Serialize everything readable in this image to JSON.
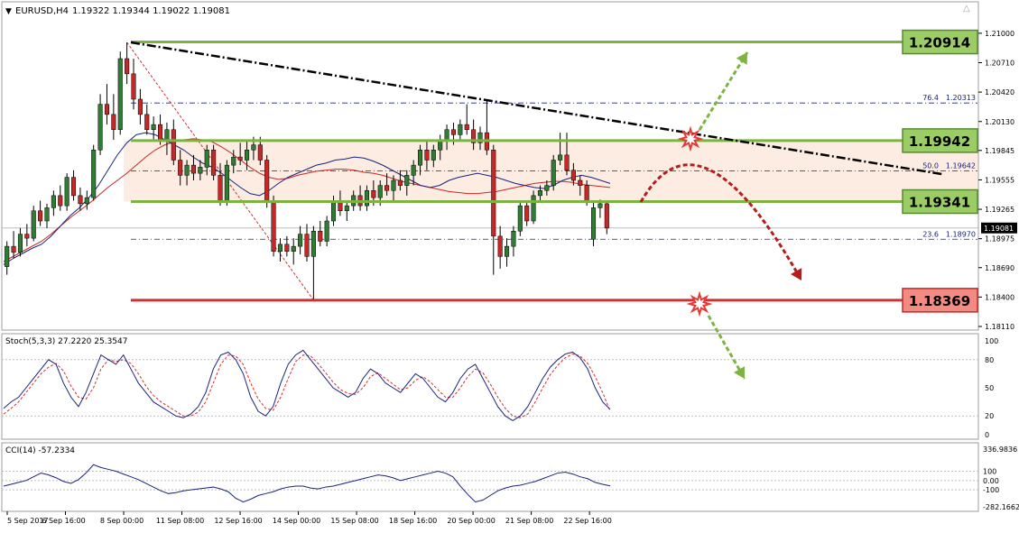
{
  "header": {
    "symbol": "EURUSD,H4",
    "ohlc": "1.19322 1.19344 1.19022 1.19081"
  },
  "colors": {
    "bull": "#2e7d32",
    "bear": "#c62828",
    "level_green": "#7cb342",
    "level_red": "#d32f2f",
    "zone_fill": "#fde9dd",
    "trendline": "#000000",
    "fib": "#1a237e",
    "ma_blue": "#1a237e",
    "ma_red": "#c62828",
    "stoch_main": "#1a237e",
    "stoch_signal": "#d32f2f",
    "cci": "#1a237e"
  },
  "chart_data": [
    {
      "type": "candlestick",
      "title": "EURUSD,H4",
      "ylim": [
        1.1811,
        1.2115
      ],
      "y_ticks": [
        "1.21000",
        "1.20710",
        "1.20420",
        "1.20130",
        "1.19845",
        "1.19555",
        "1.19265",
        "1.18975",
        "1.18690",
        "1.18400",
        "1.18110"
      ],
      "current_price": "1.19081",
      "x_labels": [
        "5 Sep 2017",
        "6 Sep 16:00",
        "8 Sep 00:00",
        "11 Sep 08:00",
        "12 Sep 16:00",
        "14 Sep 00:00",
        "15 Sep 08:00",
        "18 Sep 16:00",
        "20 Sep 00:00",
        "21 Sep 08:00",
        "22 Sep 16:00"
      ],
      "levels": [
        {
          "label": "1.20914",
          "value": 1.20914,
          "color": "green"
        },
        {
          "label": "1.19942",
          "value": 1.19942,
          "color": "green"
        },
        {
          "label": "1.19341",
          "value": 1.19341,
          "color": "green"
        },
        {
          "label": "1.18369",
          "value": 1.18369,
          "color": "red"
        }
      ],
      "fibonacci": [
        {
          "ratio": "76.4",
          "price": "1.20313"
        },
        {
          "ratio": "50.0",
          "price": "1.19642"
        },
        {
          "ratio": "23.6",
          "price": "1.18970"
        }
      ],
      "candles": [
        [
          1.187,
          1.1895,
          1.1862,
          1.189
        ],
        [
          1.189,
          1.1905,
          1.1878,
          1.1884
        ],
        [
          1.1884,
          1.1908,
          1.188,
          1.1902
        ],
        [
          1.1902,
          1.1912,
          1.189,
          1.1898
        ],
        [
          1.1898,
          1.193,
          1.1895,
          1.1925
        ],
        [
          1.1925,
          1.1935,
          1.191,
          1.1915
        ],
        [
          1.1915,
          1.1932,
          1.1908,
          1.1928
        ],
        [
          1.1928,
          1.1945,
          1.192,
          1.194
        ],
        [
          1.194,
          1.195,
          1.1925,
          1.193
        ],
        [
          1.193,
          1.1962,
          1.1925,
          1.1958
        ],
        [
          1.1958,
          1.1965,
          1.1935,
          1.194
        ],
        [
          1.194,
          1.1948,
          1.1925,
          1.1932
        ],
        [
          1.1932,
          1.1945,
          1.1926,
          1.1938
        ],
        [
          1.1938,
          1.199,
          1.1935,
          1.1985
        ],
        [
          1.1985,
          1.204,
          1.198,
          1.203
        ],
        [
          1.203,
          1.205,
          1.201,
          1.202
        ],
        [
          1.202,
          1.204,
          1.1995,
          1.2005
        ],
        [
          1.2005,
          1.2082,
          1.2,
          1.2075
        ],
        [
          1.2075,
          1.2091,
          1.205,
          1.206
        ],
        [
          1.206,
          1.2075,
          1.2025,
          1.2035
        ],
        [
          1.2035,
          1.2045,
          1.201,
          1.202
        ],
        [
          1.202,
          1.203,
          1.2,
          1.2005
        ],
        [
          1.2005,
          1.2018,
          1.1995,
          1.201
        ],
        [
          1.201,
          1.202,
          1.199,
          1.1995
        ],
        [
          1.1995,
          1.2012,
          1.198,
          1.2005
        ],
        [
          1.2005,
          1.2015,
          1.197,
          1.1975
        ],
        [
          1.1975,
          1.1985,
          1.195,
          1.196
        ],
        [
          1.196,
          1.1975,
          1.195,
          1.197
        ],
        [
          1.197,
          1.198,
          1.1955,
          1.1962
        ],
        [
          1.1962,
          1.1975,
          1.1955,
          1.1968
        ],
        [
          1.1968,
          1.199,
          1.196,
          1.1985
        ],
        [
          1.1985,
          1.199,
          1.1955,
          1.196
        ],
        [
          1.196,
          1.1972,
          1.193,
          1.1935
        ],
        [
          1.1935,
          1.1975,
          1.193,
          1.197
        ],
        [
          1.197,
          1.1985,
          1.1962,
          1.1978
        ],
        [
          1.1978,
          1.1992,
          1.197,
          1.1975
        ],
        [
          1.1975,
          1.1995,
          1.1965,
          1.1985
        ],
        [
          1.1985,
          1.1998,
          1.1975,
          1.199
        ],
        [
          1.199,
          1.1998,
          1.197,
          1.1975
        ],
        [
          1.1975,
          1.198,
          1.1928,
          1.1935
        ],
        [
          1.1935,
          1.194,
          1.188,
          1.1885
        ],
        [
          1.1885,
          1.1898,
          1.1875,
          1.1892
        ],
        [
          1.1892,
          1.19,
          1.188,
          1.1885
        ],
        [
          1.1885,
          1.1898,
          1.1872,
          1.189
        ],
        [
          1.189,
          1.191,
          1.1882,
          1.1902
        ],
        [
          1.1902,
          1.1912,
          1.1875,
          1.188
        ],
        [
          1.188,
          1.191,
          1.1837,
          1.1905
        ],
        [
          1.1905,
          1.1915,
          1.189,
          1.1895
        ],
        [
          1.1895,
          1.192,
          1.189,
          1.1915
        ],
        [
          1.1915,
          1.194,
          1.191,
          1.1935
        ],
        [
          1.1935,
          1.1945,
          1.192,
          1.1925
        ],
        [
          1.1925,
          1.1935,
          1.1915,
          1.193
        ],
        [
          1.193,
          1.1945,
          1.1925,
          1.194
        ],
        [
          1.194,
          1.195,
          1.1925,
          1.193
        ],
        [
          1.193,
          1.195,
          1.1925,
          1.1945
        ],
        [
          1.1945,
          1.1955,
          1.193,
          1.1938
        ],
        [
          1.1938,
          1.1955,
          1.193,
          1.195
        ],
        [
          1.195,
          1.1962,
          1.194,
          1.1945
        ],
        [
          1.1945,
          1.196,
          1.1935,
          1.1955
        ],
        [
          1.1955,
          1.1965,
          1.1945,
          1.195
        ],
        [
          1.195,
          1.1965,
          1.194,
          1.196
        ],
        [
          1.196,
          1.1975,
          1.195,
          1.197
        ],
        [
          1.197,
          1.199,
          1.196,
          1.1985
        ],
        [
          1.1985,
          1.1995,
          1.1965,
          1.1975
        ],
        [
          1.1975,
          1.199,
          1.1968,
          1.1985
        ],
        [
          1.1985,
          1.2,
          1.1975,
          1.1995
        ],
        [
          1.1995,
          1.201,
          1.1985,
          1.2005
        ],
        [
          1.2005,
          1.2012,
          1.199,
          1.2
        ],
        [
          1.2,
          1.2015,
          1.1995,
          1.201
        ],
        [
          1.201,
          1.203,
          1.2,
          1.2005
        ],
        [
          1.2005,
          1.2015,
          1.1985,
          1.1992
        ],
        [
          1.1992,
          1.2008,
          1.1985,
          1.2002
        ],
        [
          1.2002,
          1.2034,
          1.198,
          1.1985
        ],
        [
          1.1985,
          1.199,
          1.1862,
          1.19
        ],
        [
          1.19,
          1.191,
          1.1868,
          1.188
        ],
        [
          1.188,
          1.1898,
          1.187,
          1.189
        ],
        [
          1.189,
          1.191,
          1.188,
          1.1905
        ],
        [
          1.1905,
          1.1935,
          1.19,
          1.193
        ],
        [
          1.193,
          1.1935,
          1.191,
          1.1915
        ],
        [
          1.1915,
          1.1945,
          1.1912,
          1.194
        ],
        [
          1.194,
          1.195,
          1.1935,
          1.1945
        ],
        [
          1.1945,
          1.1955,
          1.194,
          1.195
        ],
        [
          1.195,
          1.198,
          1.1945,
          1.1975
        ],
        [
          1.1975,
          1.2002,
          1.197,
          1.198
        ],
        [
          1.198,
          1.2002,
          1.196,
          1.1965
        ],
        [
          1.1965,
          1.1972,
          1.195,
          1.1955
        ],
        [
          1.1955,
          1.196,
          1.194,
          1.195
        ],
        [
          1.195,
          1.1955,
          1.193,
          1.1935
        ],
        [
          1.1897,
          1.1934,
          1.189,
          1.1928
        ],
        [
          1.1928,
          1.1936,
          1.1918,
          1.1932
        ],
        [
          1.1932,
          1.1934,
          1.1902,
          1.1908
        ]
      ],
      "ma_slow": [
        1.1875,
        1.188,
        1.1885,
        1.189,
        1.1895,
        1.1902,
        1.191,
        1.1918,
        1.1925,
        1.1932,
        1.194,
        1.1948,
        1.1955,
        1.1962,
        1.197,
        1.1978,
        1.1985,
        1.199,
        1.1993,
        1.1995,
        1.1996,
        1.1995,
        1.1993,
        1.1988,
        1.1982,
        1.1975,
        1.1968,
        1.1962,
        1.1958,
        1.1956,
        1.1957,
        1.196,
        1.1962,
        1.1964,
        1.1965,
        1.1966,
        1.1966,
        1.1965,
        1.1963,
        1.1962,
        1.196,
        1.1957,
        1.1954,
        1.1952,
        1.195,
        1.1948,
        1.1946,
        1.1944,
        1.1943,
        1.1942,
        1.1942,
        1.1943,
        1.1944,
        1.1946,
        1.1948,
        1.195,
        1.1952,
        1.1953,
        1.1954,
        1.1954,
        1.1953,
        1.1951,
        1.195,
        1.1949,
        1.1948
      ],
      "ma_fast": [
        1.1872,
        1.1878,
        1.1883,
        1.1888,
        1.1892,
        1.19,
        1.191,
        1.192,
        1.1928,
        1.1938,
        1.195,
        1.1965,
        1.198,
        1.1992,
        1.2,
        1.2002,
        1.2,
        1.1995,
        1.199,
        1.1985,
        1.1978,
        1.1972,
        1.1968,
        1.1962,
        1.1955,
        1.1948,
        1.1942,
        1.194,
        1.1945,
        1.1952,
        1.1958,
        1.1962,
        1.1966,
        1.197,
        1.1972,
        1.1975,
        1.1976,
        1.1978,
        1.1977,
        1.1974,
        1.197,
        1.1965,
        1.196,
        1.1955,
        1.195,
        1.1948,
        1.195,
        1.1955,
        1.1958,
        1.196,
        1.1962,
        1.196,
        1.1958,
        1.1955,
        1.1952,
        1.195,
        1.1948,
        1.1947,
        1.195,
        1.1955,
        1.1958,
        1.196,
        1.1958,
        1.1955,
        1.1952
      ]
    },
    {
      "type": "line",
      "title": "Stoch(5,3,3) 27.2220 25.3547",
      "ylim": [
        0,
        100
      ],
      "y_ticks": [
        "100",
        "80",
        "50",
        "20",
        "0"
      ],
      "series": [
        {
          "values": [
            28,
            35,
            40,
            50,
            60,
            70,
            80,
            75,
            55,
            40,
            30,
            45,
            65,
            85,
            80,
            75,
            85,
            70,
            55,
            45,
            35,
            30,
            25,
            20,
            18,
            22,
            30,
            45,
            70,
            85,
            88,
            80,
            65,
            40,
            25,
            20,
            30,
            55,
            75,
            85,
            90,
            80,
            70,
            60,
            50,
            45,
            40,
            45,
            60,
            70,
            65,
            55,
            50,
            45,
            55,
            65,
            60,
            50,
            40,
            35,
            45,
            60,
            70,
            75,
            60,
            45,
            30,
            20,
            15,
            20,
            30,
            45,
            60,
            72,
            80,
            86,
            88,
            82,
            70,
            50,
            35,
            27
          ]
        },
        {
          "values": [
            22,
            28,
            35,
            45,
            55,
            65,
            72,
            76,
            68,
            52,
            40,
            38,
            50,
            70,
            80,
            78,
            80,
            76,
            65,
            52,
            42,
            35,
            30,
            25,
            20,
            20,
            24,
            35,
            55,
            75,
            85,
            84,
            75,
            55,
            38,
            28,
            26,
            40,
            60,
            78,
            85,
            84,
            76,
            66,
            56,
            48,
            44,
            43,
            50,
            62,
            66,
            60,
            54,
            48,
            50,
            58,
            62,
            56,
            48,
            40,
            40,
            50,
            62,
            70,
            66,
            54,
            40,
            28,
            20,
            18,
            22,
            35,
            50,
            64,
            74,
            82,
            86,
            84,
            76,
            62,
            45,
            25
          ]
        }
      ]
    },
    {
      "type": "line",
      "title": "CCI(14) -57.2334",
      "ylim": [
        -282.1662,
        336.9836
      ],
      "y_ticks": [
        "336.9836",
        "100",
        "0.00",
        "-100",
        "-282.1662"
      ],
      "series": [
        {
          "values": [
            -60,
            -40,
            -20,
            0,
            40,
            80,
            60,
            30,
            -10,
            -30,
            10,
            80,
            170,
            140,
            120,
            100,
            70,
            40,
            10,
            -30,
            -70,
            -110,
            -140,
            -130,
            -110,
            -100,
            -90,
            -80,
            -70,
            -90,
            -120,
            -190,
            -230,
            -200,
            -160,
            -140,
            -120,
            -90,
            -70,
            -60,
            -60,
            -80,
            -90,
            -70,
            -60,
            -40,
            -20,
            0,
            20,
            40,
            60,
            50,
            30,
            0,
            20,
            40,
            60,
            80,
            100,
            80,
            40,
            -60,
            -150,
            -230,
            -210,
            -160,
            -110,
            -80,
            -60,
            -50,
            -30,
            -10,
            20,
            50,
            80,
            90,
            70,
            40,
            20,
            -20,
            -40,
            -57
          ]
        }
      ]
    }
  ]
}
